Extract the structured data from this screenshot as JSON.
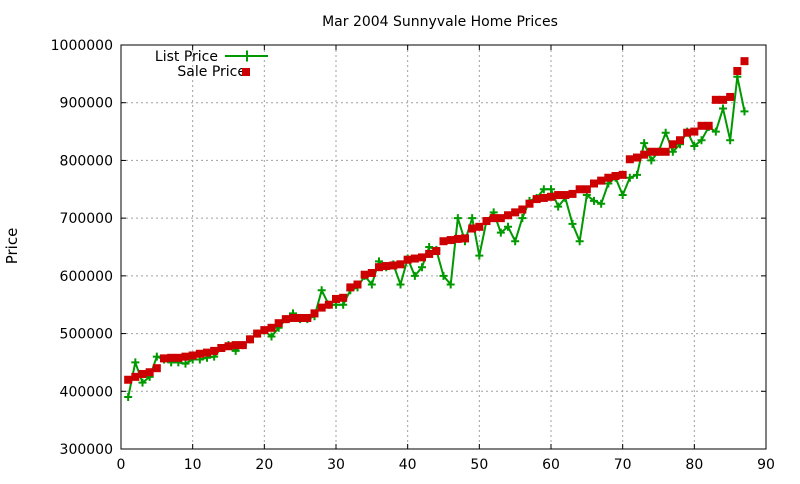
{
  "chart_data": {
    "type": "line",
    "title": "Mar 2004 Sunnyvale Home Prices",
    "xlabel": "",
    "ylabel": "Price",
    "xlim": [
      0,
      90
    ],
    "ylim": [
      300000,
      1000000
    ],
    "x_ticks": [
      0,
      10,
      20,
      30,
      40,
      50,
      60,
      70,
      80,
      90
    ],
    "y_ticks": [
      300000,
      400000,
      500000,
      600000,
      700000,
      800000,
      900000,
      1000000
    ],
    "grid": true,
    "legend_position": "top-left",
    "series": [
      {
        "name": "List Price",
        "style": "line-with-plus-markers",
        "color": "#009900",
        "x": [
          1,
          2,
          3,
          4,
          5,
          6,
          7,
          8,
          9,
          10,
          11,
          12,
          13,
          14,
          15,
          16,
          17,
          18,
          19,
          20,
          21,
          22,
          23,
          24,
          25,
          26,
          27,
          28,
          29,
          30,
          31,
          32,
          33,
          34,
          35,
          36,
          37,
          38,
          39,
          40,
          41,
          42,
          43,
          44,
          45,
          46,
          47,
          48,
          49,
          50,
          51,
          52,
          53,
          54,
          55,
          56,
          57,
          58,
          59,
          60,
          61,
          62,
          63,
          64,
          65,
          66,
          67,
          68,
          69,
          70,
          71,
          72,
          73,
          74,
          75,
          76,
          77,
          78,
          79,
          80,
          81,
          82,
          83,
          84,
          85,
          86,
          87
        ],
        "values": [
          390000,
          450000,
          415000,
          425000,
          460000,
          455000,
          450000,
          450000,
          448000,
          455000,
          455000,
          458000,
          460000,
          475000,
          480000,
          470000,
          480000,
          490000,
          500000,
          505000,
          495000,
          510000,
          525000,
          535000,
          525000,
          525000,
          530000,
          575000,
          550000,
          550000,
          550000,
          575000,
          580000,
          600000,
          585000,
          625000,
          615000,
          620000,
          585000,
          630000,
          600000,
          615000,
          650000,
          645000,
          600000,
          585000,
          700000,
          660000,
          700000,
          635000,
          695000,
          710000,
          675000,
          685000,
          660000,
          700000,
          730000,
          735000,
          750000,
          750000,
          720000,
          735000,
          690000,
          660000,
          740000,
          730000,
          725000,
          760000,
          770000,
          740000,
          770000,
          775000,
          830000,
          800000,
          815000,
          848000,
          815000,
          828000,
          850000,
          825000,
          835000,
          858000,
          850000,
          890000,
          835000,
          945000,
          885000
        ]
      },
      {
        "name": "Sale Price",
        "style": "square-markers",
        "color": "#cc0000",
        "x": [
          1,
          2,
          3,
          4,
          5,
          6,
          7,
          8,
          9,
          10,
          11,
          12,
          13,
          14,
          15,
          16,
          17,
          18,
          19,
          20,
          21,
          22,
          23,
          24,
          25,
          26,
          27,
          28,
          29,
          30,
          31,
          32,
          33,
          34,
          35,
          36,
          37,
          38,
          39,
          40,
          41,
          42,
          43,
          44,
          45,
          46,
          47,
          48,
          49,
          50,
          51,
          52,
          53,
          54,
          55,
          56,
          57,
          58,
          59,
          60,
          61,
          62,
          63,
          64,
          65,
          66,
          67,
          68,
          69,
          70,
          71,
          72,
          73,
          74,
          75,
          76,
          77,
          78,
          79,
          80,
          81,
          82,
          83,
          84,
          85,
          86,
          87
        ],
        "values": [
          420000,
          425000,
          430000,
          433000,
          440000,
          457000,
          458000,
          458000,
          460000,
          462000,
          465000,
          467000,
          470000,
          475000,
          478000,
          480000,
          480000,
          490000,
          500000,
          506000,
          510000,
          518000,
          525000,
          527000,
          527000,
          527000,
          535000,
          545000,
          550000,
          560000,
          562000,
          580000,
          585000,
          602000,
          605000,
          615000,
          617000,
          618000,
          620000,
          628000,
          630000,
          632000,
          638000,
          643000,
          660000,
          662000,
          664000,
          665000,
          682000,
          685000,
          695000,
          700000,
          700000,
          705000,
          710000,
          715000,
          725000,
          733000,
          735000,
          737000,
          740000,
          740000,
          742000,
          750000,
          750000,
          760000,
          765000,
          770000,
          773000,
          775000,
          802000,
          805000,
          810000,
          815000,
          815000,
          815000,
          828000,
          835000,
          848000,
          850000,
          860000,
          860000,
          905000,
          905000,
          910000,
          955000,
          972000
        ]
      }
    ]
  }
}
